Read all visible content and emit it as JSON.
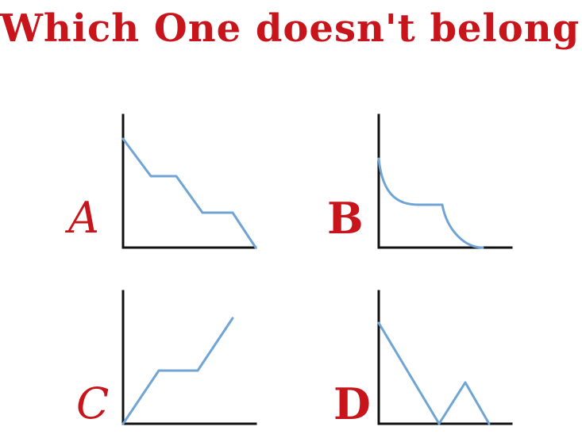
{
  "title": "Which One doesn't belong?",
  "colors": {
    "title": "#c8141b",
    "label": "#c8141b",
    "axis": "#111111",
    "curve": "#6fa4d4"
  },
  "panels": [
    {
      "id": "a",
      "label": "A"
    },
    {
      "id": "b",
      "label": "B"
    },
    {
      "id": "c",
      "label": "C"
    },
    {
      "id": "d",
      "label": "D"
    }
  ]
}
